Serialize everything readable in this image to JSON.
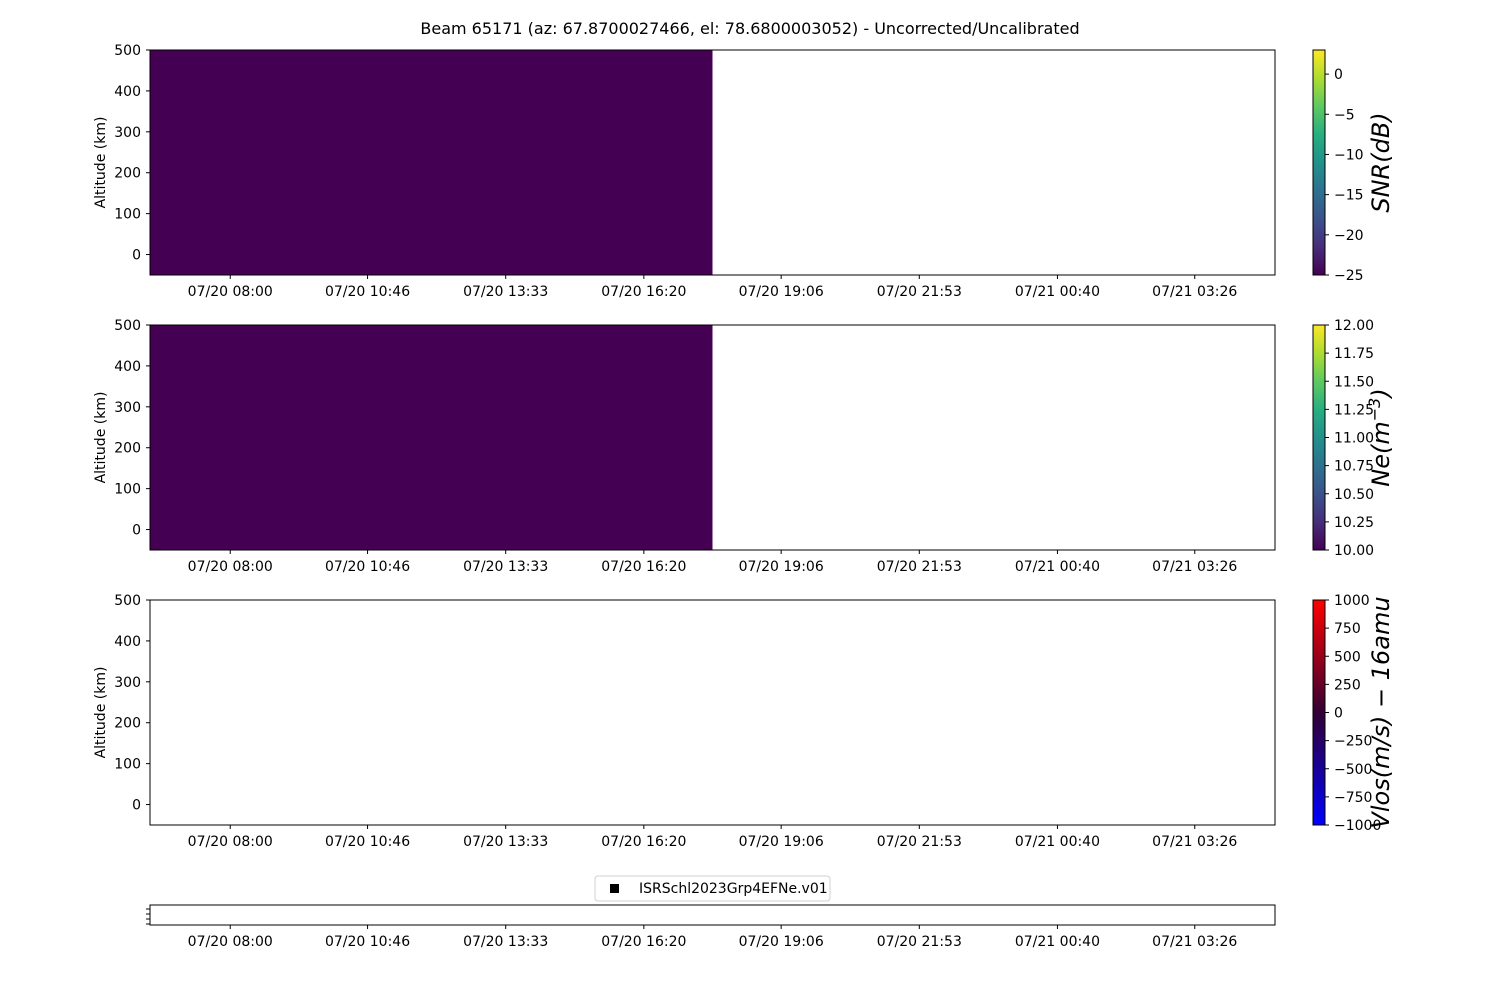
{
  "title": "Beam 65171 (az: 67.8700027466, el: 78.6800003052) - Uncorrected/Uncalibrated",
  "colors": {
    "viridis_min": "#440154",
    "axis": "#000000",
    "background": "#ffffff"
  },
  "chart_data": [
    {
      "type": "heatmap",
      "ylabel": "Altitude (km)",
      "ylim": [
        -50,
        500
      ],
      "yticks": [
        0,
        100,
        200,
        300,
        400,
        500
      ],
      "xticks": [
        "07/20 08:00",
        "07/20 10:46",
        "07/20 13:33",
        "07/20 16:20",
        "07/20 19:06",
        "07/20 21:53",
        "07/21 00:40",
        "07/21 03:26"
      ],
      "x_data_range": [
        "07/20 06:23",
        "07/21 05:03"
      ],
      "filled_x_range": [
        "07/20 06:23",
        "07/20 17:43"
      ],
      "filled_value": -25,
      "colorbar": {
        "label": "SNR(dB)",
        "colormap": "viridis",
        "range": [
          -25,
          3
        ],
        "ticks": [
          "0",
          "−5",
          "−10",
          "−15",
          "−20",
          "−25"
        ],
        "tick_values": [
          0,
          -5,
          -10,
          -15,
          -20,
          -25
        ]
      }
    },
    {
      "type": "heatmap",
      "ylabel": "Altitude (km)",
      "ylim": [
        -50,
        500
      ],
      "yticks": [
        0,
        100,
        200,
        300,
        400,
        500
      ],
      "xticks": [
        "07/20 08:00",
        "07/20 10:46",
        "07/20 13:33",
        "07/20 16:20",
        "07/20 19:06",
        "07/20 21:53",
        "07/21 00:40",
        "07/21 03:26"
      ],
      "x_data_range": [
        "07/20 06:23",
        "07/21 05:03"
      ],
      "filled_x_range": [
        "07/20 06:23",
        "07/20 17:43"
      ],
      "filled_value": 10,
      "colorbar": {
        "label": "Ne(m",
        "label_sup": "−3",
        "label_end": ")",
        "colormap": "viridis",
        "range": [
          10,
          12
        ],
        "ticks": [
          "12.00",
          "11.75",
          "11.50",
          "11.25",
          "11.00",
          "10.75",
          "10.50",
          "10.25",
          "10.00"
        ],
        "tick_values": [
          12,
          11.75,
          11.5,
          11.25,
          11,
          10.75,
          10.5,
          10.25,
          10
        ]
      }
    },
    {
      "type": "heatmap",
      "ylabel": "Altitude (km)",
      "ylim": [
        -50,
        500
      ],
      "yticks": [
        0,
        100,
        200,
        300,
        400,
        500
      ],
      "xticks": [
        "07/20 08:00",
        "07/20 10:46",
        "07/20 13:33",
        "07/20 16:20",
        "07/20 19:06",
        "07/20 21:53",
        "07/21 00:40",
        "07/21 03:26"
      ],
      "x_data_range": [
        "07/20 06:23",
        "07/21 05:03"
      ],
      "filled_x_range": null,
      "colorbar": {
        "label": "Vlos(m/s) − 16amu",
        "colormap": "bwr",
        "range": [
          -1000,
          1000
        ],
        "ticks": [
          "1000",
          "750",
          "500",
          "250",
          "0",
          "−250",
          "−500",
          "−750",
          "−1000"
        ],
        "tick_values": [
          1000,
          750,
          500,
          250,
          0,
          -250,
          -500,
          -750,
          -1000
        ]
      }
    },
    {
      "type": "scatter",
      "legend": {
        "label": "ISRSchl2023Grp4EFNe.v01",
        "placement": "top-center"
      },
      "xticks": [
        "07/20 08:00",
        "07/20 10:46",
        "07/20 13:33",
        "07/20 16:20",
        "07/20 19:06",
        "07/20 21:53",
        "07/21 00:40",
        "07/21 03:26"
      ],
      "x_data_range": [
        "07/20 06:23",
        "07/21 05:03"
      ]
    }
  ]
}
